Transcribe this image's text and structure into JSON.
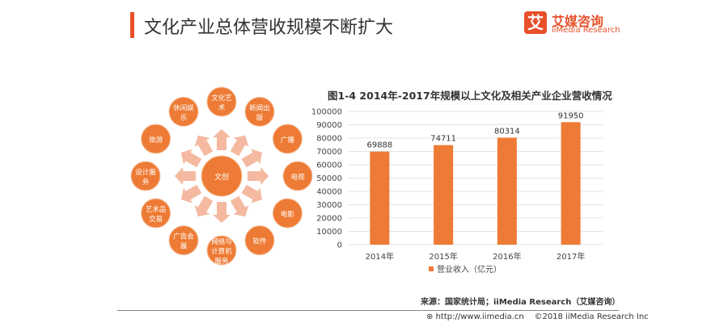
{
  "header": {
    "title": "文化产业总体营收规模不断扩大",
    "logo_char": "艾",
    "logo_cn": "艾媒咨询",
    "logo_en": "iiMedia Research"
  },
  "diagram": {
    "center": "文创",
    "nodes": [
      [
        "文化艺",
        "术"
      ],
      [
        "新闻出",
        "版"
      ],
      [
        "广播"
      ],
      [
        "电视"
      ],
      [
        "电影"
      ],
      [
        "软件"
      ],
      [
        "网络与",
        "计算机",
        "服务"
      ],
      [
        "广告会",
        "展"
      ],
      [
        "艺术品",
        "交易"
      ],
      [
        "设计服",
        "务"
      ],
      [
        "旅游"
      ],
      [
        "休闲娱",
        "乐"
      ]
    ],
    "color": "#ee7b35",
    "arrow_color": "#f4b9a0"
  },
  "chart_data": {
    "type": "bar",
    "title": "图1-4 2014年-2017年规模以上文化及相关产业企业营收情况",
    "categories": [
      "2014年",
      "2015年",
      "2016年",
      "2017年"
    ],
    "series": [
      {
        "name": "营业收入（亿元）",
        "values": [
          69888,
          74711,
          80314,
          91950
        ]
      }
    ],
    "ylim": [
      0,
      100000
    ],
    "yticks": [
      "0",
      "10000",
      "20000",
      "30000",
      "40000",
      "50000",
      "60000",
      "70000",
      "80000",
      "90000",
      "100000"
    ],
    "grid": true,
    "legend": "bottom",
    "color": "#ee7b35"
  },
  "footer": {
    "source": "来源：国家统计局；iiMedia Research（艾媒咨询）",
    "url": "http://www.iimedia.cn",
    "copyright": "©2018  iiMedia Research  Inc"
  }
}
